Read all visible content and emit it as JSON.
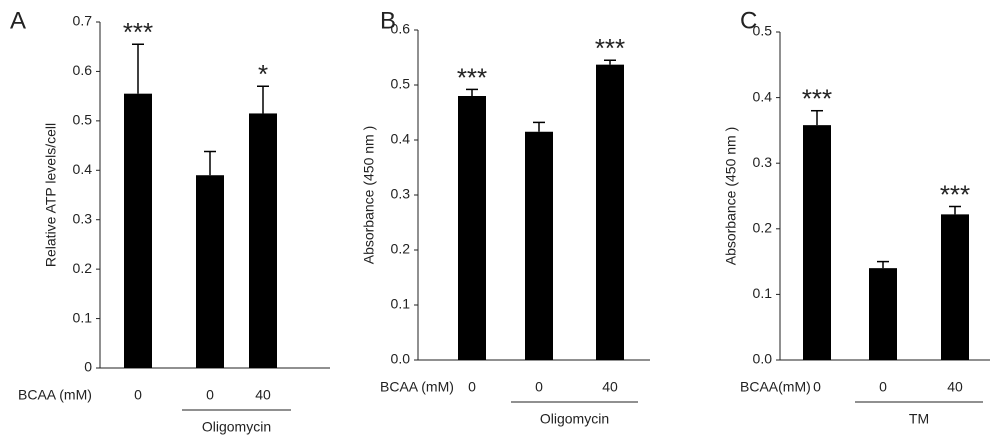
{
  "chart_data": [
    {
      "type": "bar",
      "panel": "A",
      "ylabel": "Relative ATP levels/cell",
      "row_label": "BCAA (mM)",
      "group_label": "Oligomycin",
      "categories": [
        "0",
        "0",
        "40"
      ],
      "values": [
        0.555,
        0.39,
        0.515
      ],
      "errors": [
        0.1,
        0.048,
        0.055
      ],
      "significance": [
        "***",
        null,
        "*"
      ],
      "color": "#000000",
      "ylim": [
        0,
        0.7
      ],
      "yticks": [
        0,
        0.1,
        0.2,
        0.3,
        0.4,
        0.5,
        0.6,
        0.7
      ]
    },
    {
      "type": "bar",
      "panel": "B",
      "ylabel": "Absorbance (450 nm )",
      "row_label": "BCAA (mM)",
      "group_label": "Oligomycin",
      "categories": [
        "0",
        "0",
        "40"
      ],
      "values": [
        0.48,
        0.415,
        0.537
      ],
      "errors": [
        0.012,
        0.017,
        0.008
      ],
      "significance": [
        "***",
        null,
        "***"
      ],
      "color": "#000000",
      "ylim": [
        0,
        0.6
      ],
      "yticks": [
        {
          "value": 0,
          "label": "0.0"
        },
        0.1,
        0.2,
        0.3,
        0.4,
        0.5,
        0.6
      ]
    },
    {
      "type": "bar",
      "panel": "C",
      "ylabel": "Absorbance (450 nm )",
      "row_label": "BCAA(mM)",
      "group_label": "TM",
      "categories": [
        "0",
        "0",
        "40"
      ],
      "values": [
        0.358,
        0.14,
        0.222
      ],
      "errors": [
        0.022,
        0.01,
        0.012
      ],
      "significance": [
        "***",
        null,
        "***"
      ],
      "color": "#000000",
      "ylim": [
        0,
        0.5
      ],
      "yticks": [
        {
          "value": 0,
          "label": "0.0"
        },
        0.1,
        0.2,
        0.3,
        0.4,
        0.5
      ]
    }
  ]
}
